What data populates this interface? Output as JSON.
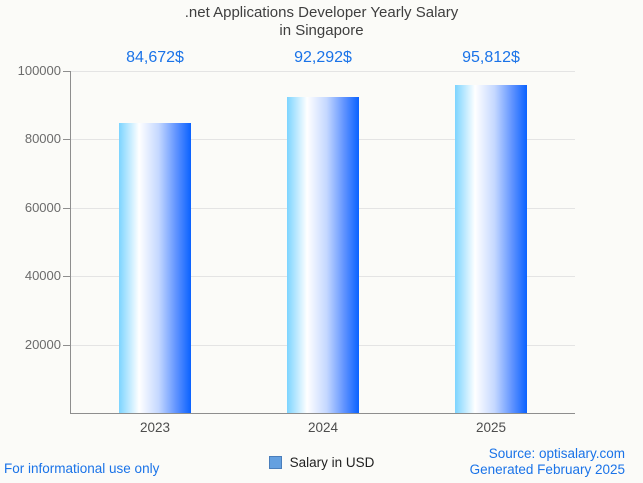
{
  "title": {
    "line1": ".net Applications Developer Yearly Salary",
    "line2": "in Singapore"
  },
  "chart_data": {
    "type": "bar",
    "title": ".net Applications Developer Yearly Salary in Singapore",
    "categories": [
      "2023",
      "2024",
      "2025"
    ],
    "series": [
      {
        "name": "Salary in USD",
        "values": [
          84672,
          92292,
          95812
        ],
        "value_labels": [
          "84,672$",
          "92,292$",
          "95,812$"
        ]
      }
    ],
    "xlabel": "",
    "ylabel": "",
    "ylim": [
      0,
      100000
    ],
    "yticks": [
      20000,
      40000,
      60000,
      80000,
      100000
    ],
    "ytick_labels": [
      "20000",
      "40000",
      "60000",
      "80000",
      "100000"
    ],
    "grid": true,
    "legend_position": "bottom",
    "bar_gradient": [
      "#7cd4ff",
      "#ffffff",
      "#0a62ff"
    ],
    "value_label_color": "#1a73e8"
  },
  "legend": {
    "label": "Salary in USD",
    "marker_color": "#64a0e0",
    "marker_border": "#4a7ebb"
  },
  "footer": {
    "left": "For informational use only",
    "source": "Source: optisalary.com",
    "generated": "Generated February 2025"
  },
  "colors": {
    "background": "#fbfbf8",
    "title": "#3f3f3f",
    "accent_blue": "#1a73e8",
    "axis": "#8e8e8e",
    "gridline": "#e4e4e4",
    "ytick_label": "#6b6b6b",
    "xtick_label": "#4d4d4d"
  }
}
